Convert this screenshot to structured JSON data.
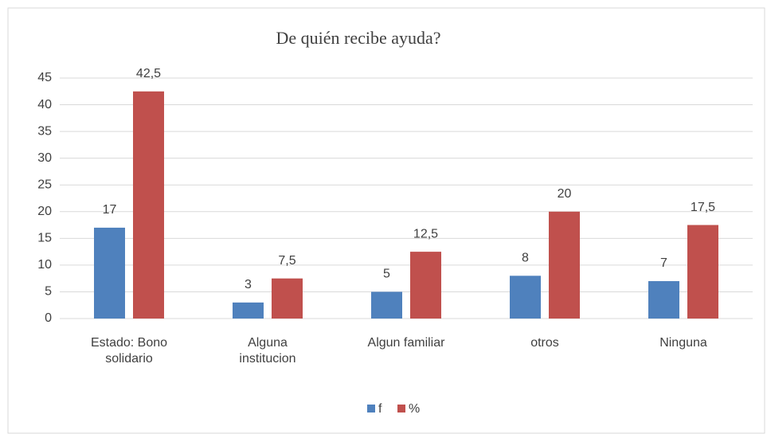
{
  "chart_data": {
    "type": "bar",
    "title": "De quién recibe ayuda?",
    "categories": [
      "Estado: Bono solidario",
      "Alguna institucion",
      "Algun familiar",
      "otros",
      "Ninguna"
    ],
    "series": [
      {
        "name": "f",
        "color": "#4f81bd",
        "values": [
          17,
          3,
          5,
          8,
          7
        ]
      },
      {
        "name": "%",
        "color": "#c0504d",
        "values": [
          42.5,
          7.5,
          12.5,
          20,
          17.5
        ],
        "value_labels": [
          "42,5",
          "7,5",
          "12,5",
          "20",
          "17,5"
        ]
      }
    ],
    "ylim": [
      0,
      45
    ],
    "yticks": [
      0,
      5,
      10,
      15,
      20,
      25,
      30,
      35,
      40,
      45
    ],
    "grid": true,
    "legend": "bottom"
  }
}
